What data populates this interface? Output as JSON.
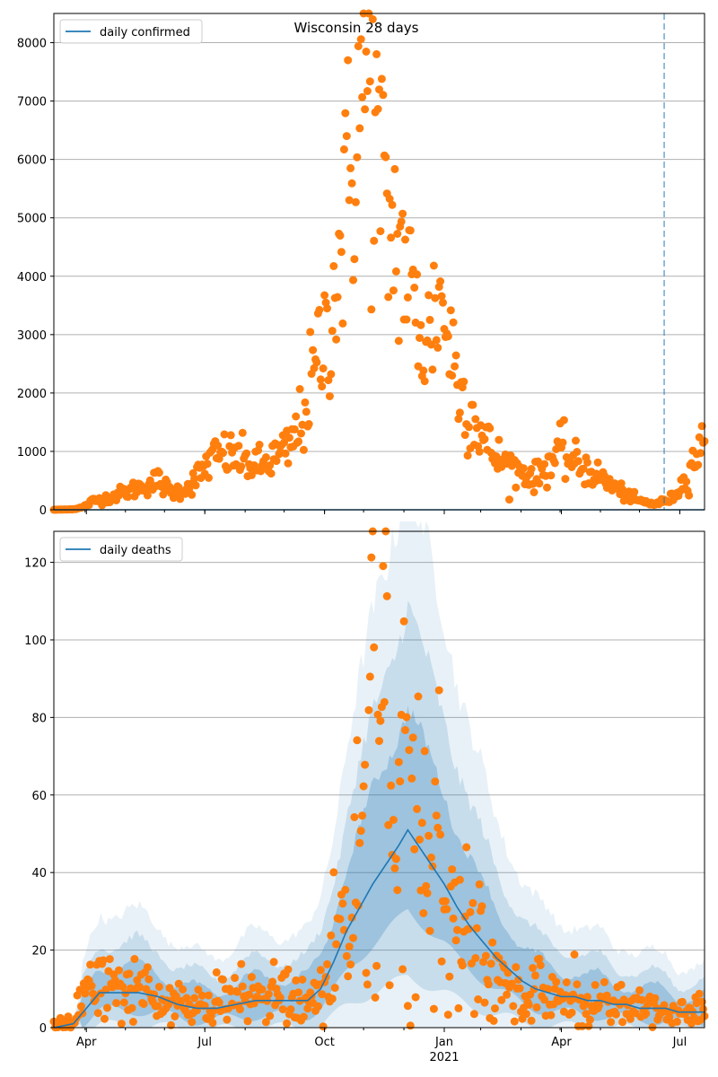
{
  "chart_data": [
    {
      "type": "scatter",
      "title": "Wisconsin 28 days",
      "legend": "daily confirmed",
      "legend_placement": "top-left",
      "grid": "y",
      "ylim": [
        0,
        8500
      ],
      "yticks": [
        0,
        1000,
        2000,
        3000,
        4000,
        5000,
        6000,
        7000,
        8000
      ],
      "x_range_days": [
        -10,
        490
      ],
      "vline_day": 459,
      "line_color": "#1f77b4",
      "point_color": "#ff7f0e",
      "vline_color": "#1f77b4",
      "series": [
        {
          "name": "daily confirmed",
          "kind": "line",
          "points": [
            [
              -10,
              0
            ],
            [
              490,
              0
            ]
          ]
        }
      ],
      "observed_keypoints": [
        [
          -10,
          0
        ],
        [
          5,
          10
        ],
        [
          12,
          40
        ],
        [
          20,
          150
        ],
        [
          30,
          200
        ],
        [
          45,
          300
        ],
        [
          60,
          420
        ],
        [
          70,
          500
        ],
        [
          80,
          300
        ],
        [
          90,
          350
        ],
        [
          100,
          550
        ],
        [
          110,
          850
        ],
        [
          120,
          950
        ],
        [
          130,
          900
        ],
        [
          140,
          800
        ],
        [
          150,
          750
        ],
        [
          160,
          900
        ],
        [
          170,
          1000
        ],
        [
          175,
          1250
        ],
        [
          180,
          1500
        ],
        [
          185,
          1900
        ],
        [
          190,
          2300
        ],
        [
          195,
          2750
        ],
        [
          200,
          3100
        ],
        [
          205,
          3700
        ],
        [
          210,
          4500
        ],
        [
          215,
          5300
        ],
        [
          220,
          6000
        ],
        [
          225,
          7000
        ],
        [
          230,
          7400
        ],
        [
          235,
          6800
        ],
        [
          240,
          5900
        ],
        [
          245,
          5000
        ],
        [
          250,
          4800
        ],
        [
          255,
          4600
        ],
        [
          260,
          4200
        ],
        [
          265,
          3600
        ],
        [
          270,
          3200
        ],
        [
          275,
          2900
        ],
        [
          280,
          3000
        ],
        [
          285,
          3800
        ],
        [
          290,
          3300
        ],
        [
          295,
          2900
        ],
        [
          300,
          2200
        ],
        [
          305,
          1900
        ],
        [
          310,
          1700
        ],
        [
          315,
          1500
        ],
        [
          320,
          1200
        ],
        [
          330,
          900
        ],
        [
          340,
          750
        ],
        [
          350,
          650
        ],
        [
          360,
          550
        ],
        [
          370,
          800
        ],
        [
          380,
          1000
        ],
        [
          390,
          800
        ],
        [
          400,
          700
        ],
        [
          410,
          550
        ],
        [
          420,
          400
        ],
        [
          430,
          250
        ],
        [
          440,
          150
        ],
        [
          450,
          100
        ],
        [
          455,
          120
        ],
        [
          460,
          150
        ],
        [
          465,
          200
        ],
        [
          470,
          350
        ],
        [
          475,
          500
        ],
        [
          482,
          900
        ],
        [
          490,
          1100
        ]
      ]
    },
    {
      "type": "scatter",
      "title": "",
      "legend": "daily deaths",
      "legend_placement": "top-left",
      "grid": "y",
      "ylim": [
        0,
        128
      ],
      "yticks": [
        0,
        20,
        40,
        60,
        80,
        100,
        120
      ],
      "x_range_days": [
        -10,
        490
      ],
      "x_ticks": [
        {
          "day": 15,
          "label": "Apr"
        },
        {
          "day": 106,
          "label": "Jul"
        },
        {
          "day": 198,
          "label": "Oct"
        },
        {
          "day": 290,
          "label": "Jan"
        },
        {
          "day": 380,
          "label": "Apr"
        },
        {
          "day": 471,
          "label": "Jul"
        }
      ],
      "year_label": {
        "day": 290,
        "label": "2021"
      },
      "vline_day": 459,
      "line_color": "#1f77b4",
      "point_color": "#ff7f0e",
      "band_color": "#1f77b4",
      "series": [
        {
          "name": "daily deaths",
          "kind": "line",
          "points": [
            [
              -10,
              0
            ],
            [
              5,
              1
            ],
            [
              15,
              5
            ],
            [
              25,
              9
            ],
            [
              40,
              9
            ],
            [
              55,
              9
            ],
            [
              70,
              8
            ],
            [
              85,
              6
            ],
            [
              100,
              5
            ],
            [
              115,
              5
            ],
            [
              130,
              6
            ],
            [
              145,
              7
            ],
            [
              160,
              7
            ],
            [
              175,
              7
            ],
            [
              185,
              7
            ],
            [
              195,
              10
            ],
            [
              205,
              17
            ],
            [
              215,
              25
            ],
            [
              225,
              31
            ],
            [
              235,
              37
            ],
            [
              245,
              42
            ],
            [
              255,
              47
            ],
            [
              262,
              51
            ],
            [
              270,
              47
            ],
            [
              280,
              42
            ],
            [
              290,
              37
            ],
            [
              300,
              31
            ],
            [
              310,
              26
            ],
            [
              320,
              22
            ],
            [
              330,
              18
            ],
            [
              340,
              15
            ],
            [
              350,
              12
            ],
            [
              360,
              10
            ],
            [
              370,
              9
            ],
            [
              380,
              8
            ],
            [
              390,
              8
            ],
            [
              400,
              7
            ],
            [
              410,
              7
            ],
            [
              420,
              6
            ],
            [
              430,
              6
            ],
            [
              440,
              5
            ],
            [
              450,
              5
            ],
            [
              460,
              5
            ],
            [
              470,
              4
            ],
            [
              480,
              4
            ],
            [
              490,
              4
            ]
          ]
        }
      ],
      "observed_keypoints": [
        [
          -10,
          0
        ],
        [
          5,
          2
        ],
        [
          15,
          10
        ],
        [
          25,
          12
        ],
        [
          35,
          9
        ],
        [
          45,
          10
        ],
        [
          55,
          9
        ],
        [
          65,
          8
        ],
        [
          75,
          7
        ],
        [
          85,
          6
        ],
        [
          95,
          5
        ],
        [
          105,
          5
        ],
        [
          115,
          6
        ],
        [
          125,
          7
        ],
        [
          135,
          7
        ],
        [
          145,
          8
        ],
        [
          155,
          8
        ],
        [
          165,
          8
        ],
        [
          175,
          7
        ],
        [
          185,
          6
        ],
        [
          192,
          8
        ],
        [
          200,
          12
        ],
        [
          205,
          18
        ],
        [
          210,
          24
        ],
        [
          215,
          30
        ],
        [
          220,
          36
        ],
        [
          225,
          42
        ],
        [
          230,
          55
        ],
        [
          235,
          72
        ],
        [
          240,
          80
        ],
        [
          245,
          85
        ],
        [
          250,
          65
        ],
        [
          255,
          58
        ],
        [
          260,
          50
        ],
        [
          265,
          52
        ],
        [
          270,
          45
        ],
        [
          275,
          45
        ],
        [
          280,
          38
        ],
        [
          285,
          42
        ],
        [
          290,
          40
        ],
        [
          295,
          35
        ],
        [
          300,
          30
        ],
        [
          305,
          26
        ],
        [
          310,
          24
        ],
        [
          315,
          20
        ],
        [
          320,
          17
        ],
        [
          325,
          15
        ],
        [
          330,
          13
        ],
        [
          335,
          11
        ],
        [
          340,
          9
        ],
        [
          345,
          8
        ],
        [
          350,
          8
        ],
        [
          355,
          8
        ],
        [
          360,
          10
        ],
        [
          365,
          10
        ],
        [
          370,
          9
        ],
        [
          375,
          7
        ],
        [
          380,
          8
        ],
        [
          385,
          7
        ],
        [
          390,
          9
        ],
        [
          395,
          6
        ],
        [
          400,
          6
        ],
        [
          405,
          6
        ],
        [
          410,
          5
        ],
        [
          415,
          6
        ],
        [
          420,
          6
        ],
        [
          425,
          6
        ],
        [
          430,
          5
        ],
        [
          435,
          4
        ],
        [
          440,
          6
        ],
        [
          445,
          5
        ],
        [
          450,
          5
        ],
        [
          455,
          5
        ],
        [
          460,
          4
        ],
        [
          465,
          4
        ],
        [
          470,
          4
        ],
        [
          475,
          5
        ],
        [
          480,
          4
        ],
        [
          485,
          5
        ],
        [
          490,
          4
        ]
      ]
    }
  ]
}
